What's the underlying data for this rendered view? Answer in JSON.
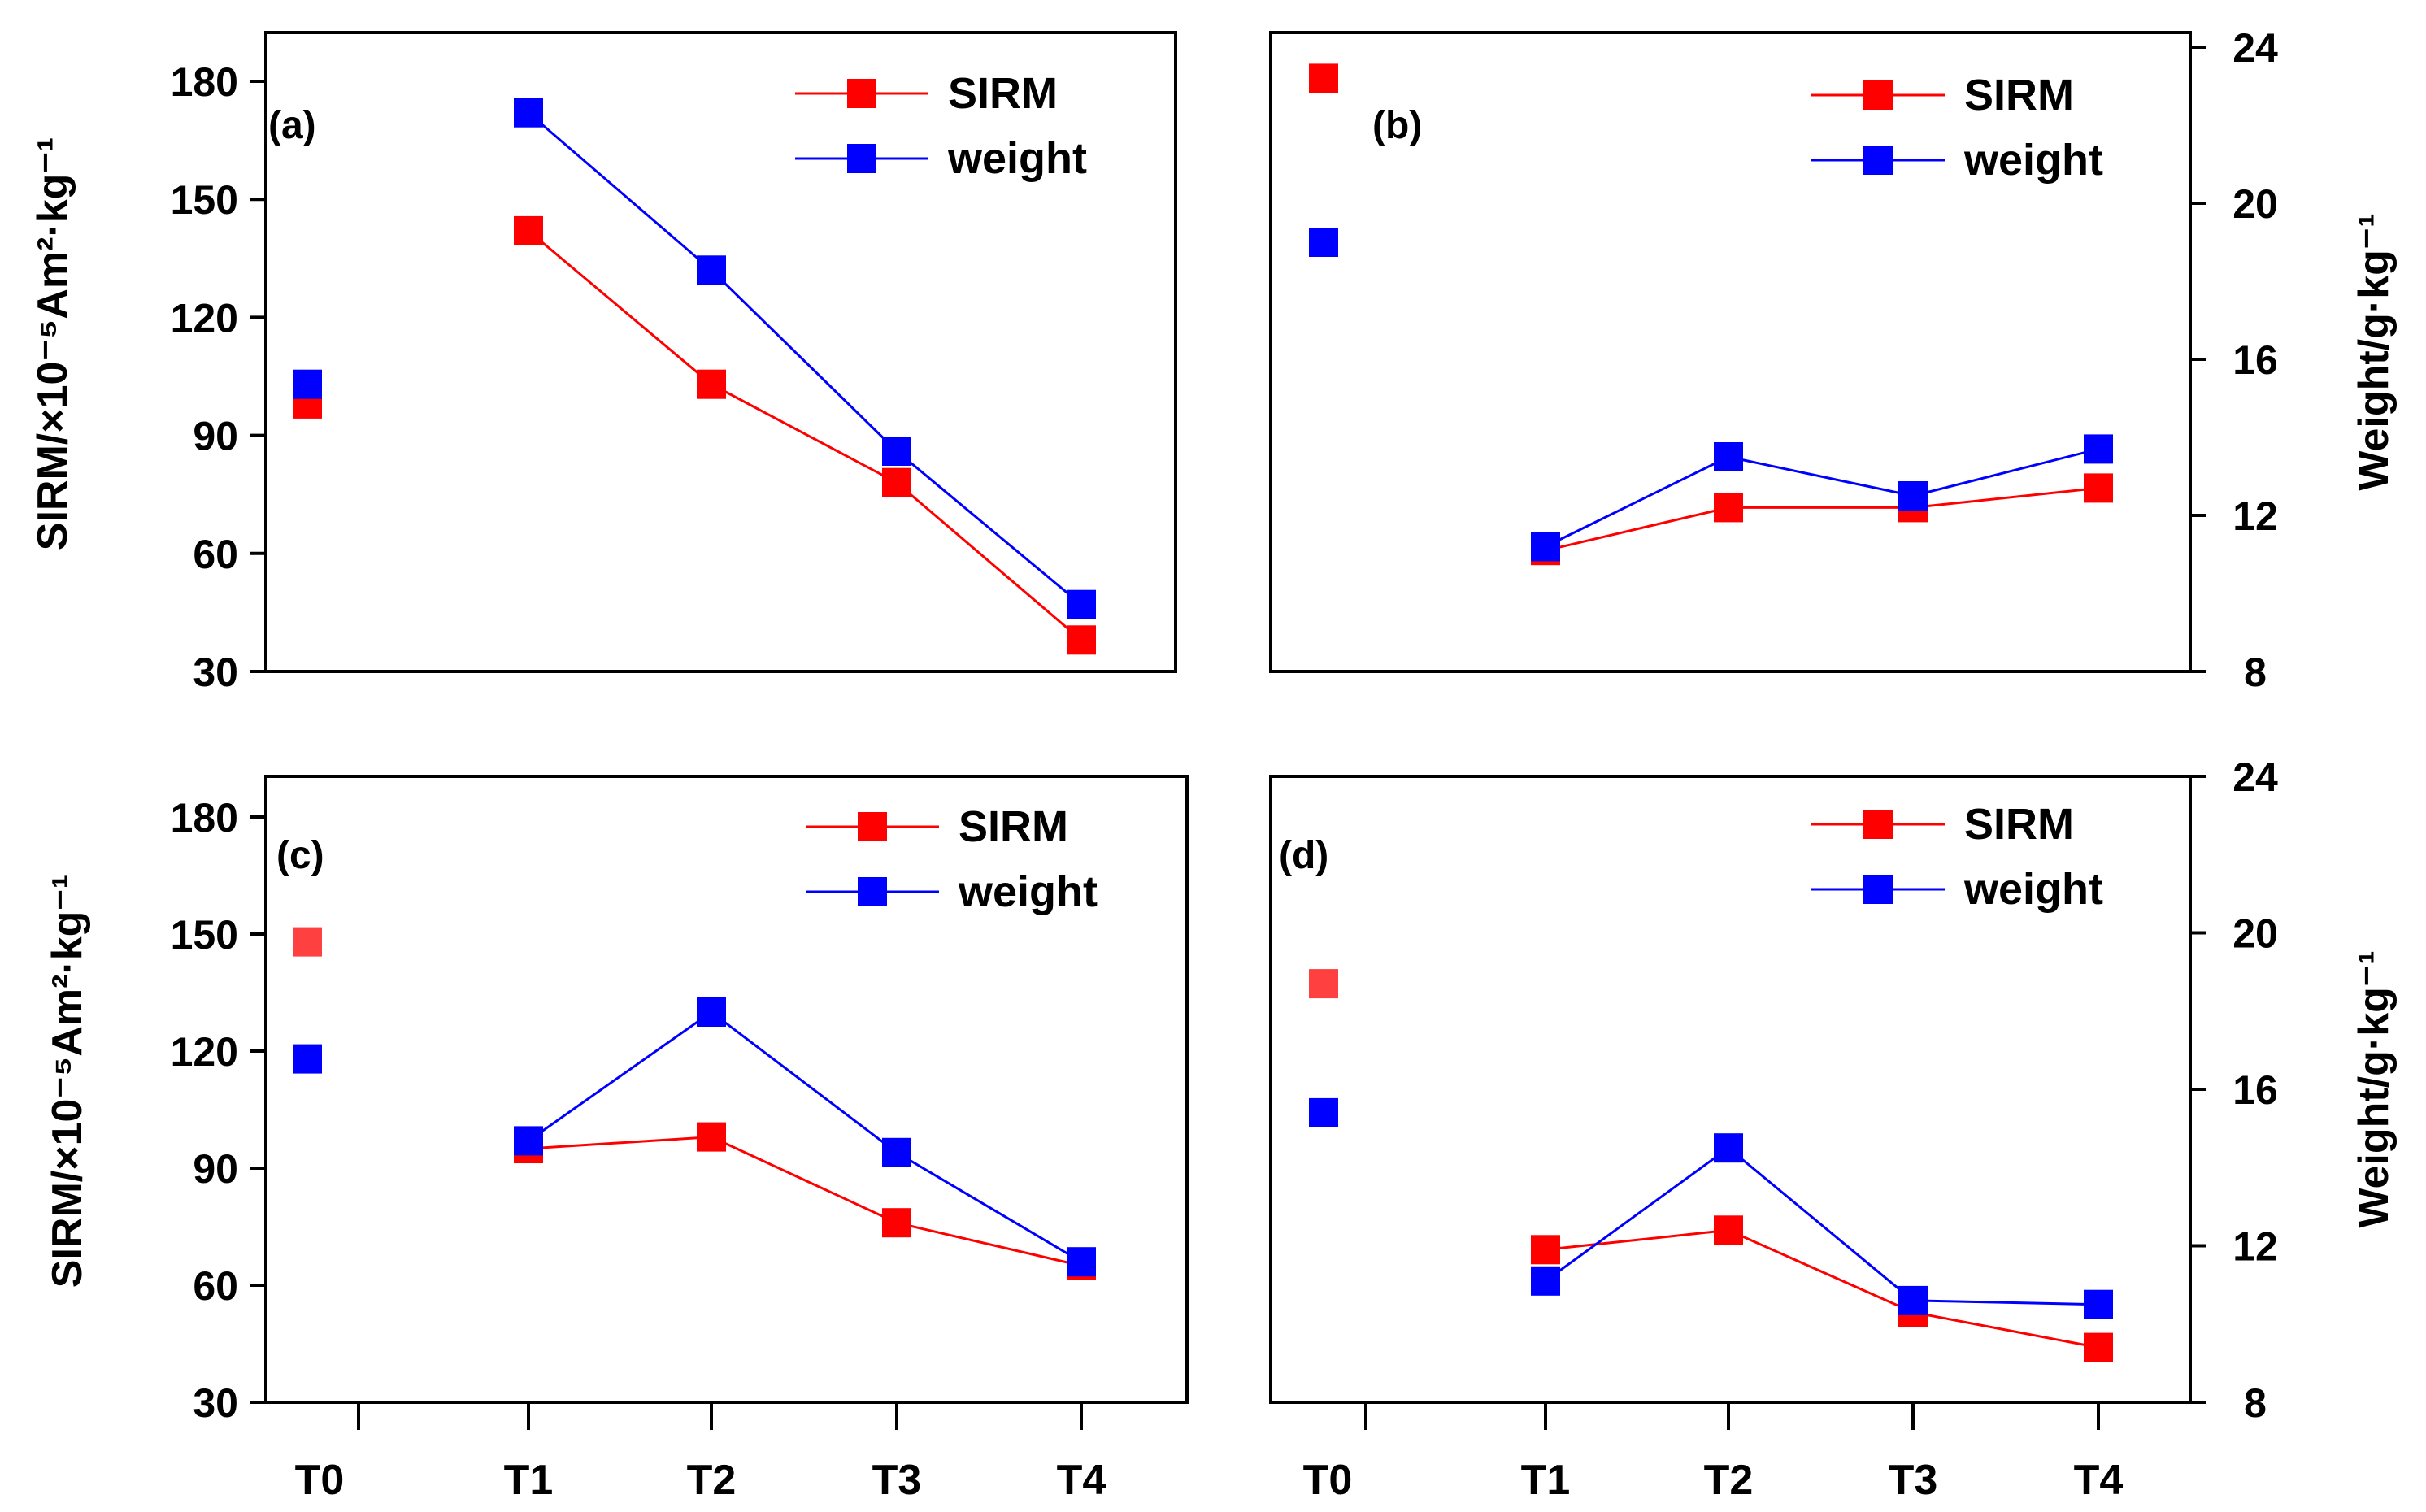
{
  "colors": {
    "sirm": "#ff0000",
    "weight": "#0000ff",
    "sirm_t0_light": "#ff4040"
  },
  "categories": [
    "T0",
    "T1",
    "T2",
    "T3",
    "T4"
  ],
  "axes": {
    "left_ylabel": "SIRM/×10⁻⁵Am²·kg⁻¹",
    "right_ylabel": "Weight/g·kg⁻¹",
    "left_ticks": [
      "30",
      "60",
      "90",
      "120",
      "150",
      "180"
    ],
    "right_ticks": [
      "8",
      "12",
      "16",
      "20",
      "24"
    ]
  },
  "chart_data": [
    {
      "type": "line",
      "panel": "(a)",
      "categories": [
        "T0",
        "T1",
        "T2",
        "T3",
        "T4"
      ],
      "ylabel": "SIRM/×10⁻⁵Am²·kg⁻¹",
      "ylim": [
        30,
        190
      ],
      "series": [
        {
          "name": "SIRM",
          "values": [
            98,
            142,
            103,
            78,
            38
          ]
        },
        {
          "name": "weight",
          "values": [
            103,
            172,
            132,
            86,
            47
          ]
        }
      ],
      "legend": [
        "SIRM",
        "weight"
      ],
      "legend_position": "top-right"
    },
    {
      "type": "line",
      "panel": "(b)",
      "categories": [
        "T0",
        "T1",
        "T2",
        "T3",
        "T4"
      ],
      "ylabel": "Weight/g·kg⁻¹",
      "ylim": [
        8,
        24
      ],
      "series": [
        {
          "name": "SIRM",
          "values": [
            23.2,
            11.1,
            12.2,
            12.2,
            12.7
          ]
        },
        {
          "name": "weight",
          "values": [
            19.0,
            11.2,
            13.5,
            12.5,
            13.7
          ]
        }
      ],
      "legend": [
        "SIRM",
        "weight"
      ],
      "legend_position": "top-right"
    },
    {
      "type": "line",
      "panel": "(c)",
      "categories": [
        "T0",
        "T1",
        "T2",
        "T3",
        "T4"
      ],
      "ylabel": "SIRM/×10⁻⁵Am²·kg⁻¹",
      "ylim": [
        30,
        190
      ],
      "series": [
        {
          "name": "SIRM",
          "values": [
            148,
            95,
            98,
            76,
            65
          ]
        },
        {
          "name": "weight",
          "values": [
            118,
            97,
            130,
            94,
            66
          ]
        }
      ],
      "legend": [
        "SIRM",
        "weight"
      ],
      "legend_position": "top-right"
    },
    {
      "type": "line",
      "panel": "(d)",
      "categories": [
        "T0",
        "T1",
        "T2",
        "T3",
        "T4"
      ],
      "ylabel": "Weight/g·kg⁻¹",
      "ylim": [
        8,
        24
      ],
      "series": [
        {
          "name": "SIRM",
          "values": [
            18.7,
            11.9,
            12.4,
            10.3,
            9.4
          ]
        },
        {
          "name": "weight",
          "values": [
            15.4,
            11.1,
            14.5,
            10.6,
            10.5
          ]
        }
      ],
      "legend": [
        "SIRM",
        "weight"
      ],
      "legend_position": "top-right"
    }
  ]
}
